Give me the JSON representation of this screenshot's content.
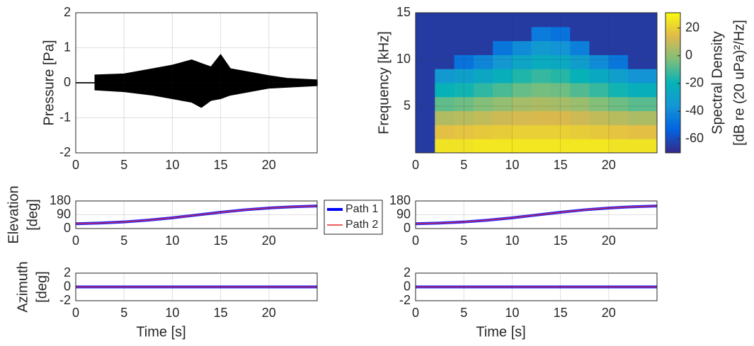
{
  "chart_data": [
    {
      "type": "area",
      "ylabel": [
        "Pressure [Pa]"
      ],
      "x": [
        0,
        2,
        2,
        5,
        8,
        10,
        12,
        13,
        14,
        15,
        16,
        18,
        20,
        22,
        25
      ],
      "series": [
        {
          "color": "#000000",
          "values": [
            0,
            0,
            0.22,
            0.25,
            0.4,
            0.5,
            0.65,
            0.55,
            0.45,
            0.8,
            0.4,
            0.3,
            0.2,
            0.12,
            0.08
          ]
        },
        {
          "color": "#000000",
          "values": [
            0,
            0,
            -0.2,
            -0.25,
            -0.35,
            -0.45,
            -0.55,
            -0.7,
            -0.5,
            -0.45,
            -0.35,
            -0.25,
            -0.15,
            -0.12,
            -0.08
          ]
        }
      ],
      "xlim": [
        0,
        25
      ],
      "xticks": [
        0,
        5,
        10,
        15,
        20
      ],
      "ylim": [
        -2,
        2
      ],
      "yticks": [
        -2,
        -1,
        0,
        1,
        2
      ],
      "grid": true
    },
    {
      "type": "heatmap",
      "ylabel": [
        "Frequency [kHz]"
      ],
      "xbins": [
        0,
        2,
        4,
        6,
        8,
        10,
        12,
        14,
        16,
        18,
        20,
        22,
        25
      ],
      "ybins": [
        0,
        1.5,
        3,
        4.5,
        6,
        7.5,
        9,
        10.5,
        12,
        13.5,
        15
      ],
      "values": [
        [
          -65,
          25,
          25,
          26,
          26,
          26,
          26,
          26,
          26,
          26,
          25,
          25
        ],
        [
          -65,
          16,
          17,
          18,
          19,
          20,
          20,
          20,
          19,
          18,
          17,
          16
        ],
        [
          -65,
          6,
          7,
          9,
          11,
          12,
          13,
          13,
          11,
          9,
          7,
          5
        ],
        [
          -65,
          -7,
          -5,
          -2,
          1,
          4,
          5,
          4,
          2,
          -2,
          -5,
          -8
        ],
        [
          -65,
          -20,
          -18,
          -14,
          -10,
          -6,
          -4,
          -5,
          -9,
          -13,
          -18,
          -22
        ],
        [
          -65,
          -34,
          -31,
          -27,
          -22,
          -16,
          -13,
          -15,
          -20,
          -26,
          -31,
          -37
        ],
        [
          -65,
          -65,
          -48,
          -42,
          -35,
          -28,
          -24,
          -26,
          -32,
          -40,
          -47,
          -65
        ],
        [
          -65,
          -65,
          -65,
          -65,
          -47,
          -40,
          -34,
          -37,
          -44,
          -65,
          -65,
          -65
        ],
        [
          -65,
          -65,
          -65,
          -65,
          -65,
          -65,
          -45,
          -48,
          -65,
          -65,
          -65,
          -65
        ],
        [
          -65,
          -65,
          -65,
          -65,
          -65,
          -65,
          -65,
          -65,
          -65,
          -65,
          -65,
          -65
        ]
      ],
      "clim": [
        -70,
        31
      ],
      "cticks": [
        -60,
        -40,
        -20,
        0,
        20
      ],
      "colorbar_label": [
        "Spectral Density",
        "[dB re (20 uPa)²/Hz]"
      ],
      "colormap": [
        "#352a87",
        "#0363e1",
        "#1496d4",
        "#06b3b6",
        "#7fbf7b",
        "#e0b94b",
        "#f9fb0e"
      ],
      "xlim": [
        0,
        25
      ],
      "xticks": [
        0,
        5,
        10,
        15,
        20
      ],
      "ylim": [
        0,
        15
      ],
      "yticks": [
        5,
        10,
        15
      ],
      "grid": true
    },
    {
      "type": "line",
      "ylabel": [
        "Elevation",
        "[deg]"
      ],
      "x": [
        0,
        2.5,
        5,
        7.5,
        10,
        12.5,
        15,
        17.5,
        20,
        22.5,
        25
      ],
      "series": [
        {
          "name": "Path 1",
          "color": "#0000ff",
          "values": [
            31,
            36,
            43,
            55,
            70,
            88,
            106,
            122,
            134,
            142,
            147
          ]
        },
        {
          "name": "Path 2",
          "color": "#e8262b",
          "values": [
            31,
            36,
            43,
            55,
            70,
            88,
            106,
            122,
            134,
            142,
            147
          ]
        }
      ],
      "legend": "outside-right",
      "xlim": [
        0,
        25
      ],
      "xticks": [
        0,
        5,
        10,
        15,
        20
      ],
      "ylim": [
        0,
        180
      ],
      "yticks": [
        0,
        90,
        180
      ],
      "grid": true
    },
    {
      "type": "line",
      "x": [
        0,
        2.5,
        5,
        7.5,
        10,
        12.5,
        15,
        17.5,
        20,
        22.5,
        25
      ],
      "series": [
        {
          "color": "#0000ff",
          "values": [
            31,
            36,
            43,
            55,
            70,
            88,
            106,
            122,
            134,
            142,
            147
          ]
        },
        {
          "color": "#e8262b",
          "values": [
            31,
            36,
            43,
            55,
            70,
            88,
            106,
            122,
            134,
            142,
            147
          ]
        }
      ],
      "xlim": [
        0,
        25
      ],
      "xticks": [
        0,
        5,
        10,
        15,
        20
      ],
      "ylim": [
        0,
        180
      ],
      "yticks": [
        0,
        90,
        180
      ],
      "grid": true
    },
    {
      "type": "line",
      "ylabel": [
        "Azimuth",
        "[deg]"
      ],
      "xlabel": "Time [s]",
      "x": [
        0,
        25
      ],
      "series": [
        {
          "color": "#0000ff",
          "values": [
            0,
            0
          ]
        },
        {
          "color": "#e8262b",
          "values": [
            0,
            0
          ]
        }
      ],
      "xlim": [
        0,
        25
      ],
      "xticks": [
        0,
        5,
        10,
        15,
        20
      ],
      "ylim": [
        -2,
        2
      ],
      "yticks": [
        -2,
        0,
        2
      ],
      "grid": true
    },
    {
      "type": "line",
      "xlabel": "Time [s]",
      "x": [
        0,
        25
      ],
      "series": [
        {
          "color": "#0000ff",
          "values": [
            0,
            0
          ]
        },
        {
          "color": "#e8262b",
          "values": [
            0,
            0
          ]
        }
      ],
      "xlim": [
        0,
        25
      ],
      "xticks": [
        0,
        5,
        10,
        15,
        20
      ],
      "ylim": [
        -2,
        2
      ],
      "yticks": [
        -2,
        0,
        2
      ],
      "grid": true
    }
  ]
}
